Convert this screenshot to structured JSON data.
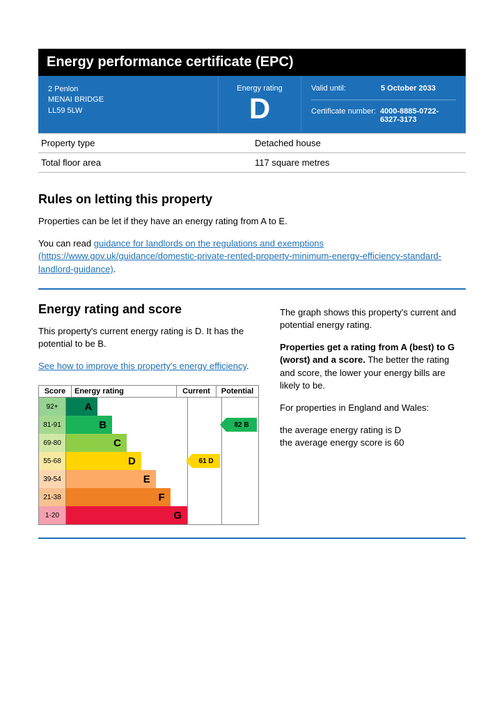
{
  "title": "Energy performance certificate (EPC)",
  "address": {
    "line1": "2 Penlon",
    "line2": "MENAI BRIDGE",
    "line3": "LL59 5LW"
  },
  "rating_label": "Energy rating",
  "rating_letter": "D",
  "valid": {
    "label": "Valid until:",
    "value": "5 October 2033",
    "cert_label": "Certificate number:",
    "cert_value": "4000-8885-0722-6327-3173"
  },
  "props": [
    {
      "label": "Property type",
      "value": "Detached house"
    },
    {
      "label": "Total floor area",
      "value": "117 square metres"
    }
  ],
  "rules": {
    "heading": "Rules on letting this property",
    "p1": "Properties can be let if they have an energy rating from A to E.",
    "p2a": "You can read ",
    "link_text": "guidance for landlords on the regulations and exemptions (https://www.gov.uk/guidance/domestic-private-rented-property-minimum-energy-efficiency-standard-landlord-guidance)",
    "p2b": "."
  },
  "score_section": {
    "heading": "Energy rating and score",
    "left_p1": "This property's current energy rating is D. It has the potential to be B.",
    "left_link": "See how to improve this property's energy efficiency",
    "right_p1": "The graph shows this property's current and potential energy rating.",
    "right_p2a": "Properties get a rating from A (best) to G (worst) and a score.",
    "right_p2b": " The better the rating and score, the lower your energy bills are likely to be.",
    "right_p3": "For properties in England and Wales:",
    "right_p4a": "the average energy rating is D",
    "right_p4b": "the average energy score is 60"
  },
  "chart": {
    "headers": {
      "score": "Score",
      "rating": "Energy rating",
      "current": "Current",
      "potential": "Potential"
    },
    "bands": [
      {
        "range": "92+",
        "letter": "A",
        "width_pct": 26,
        "bar_color": "#008054",
        "score_bg": "#97d393"
      },
      {
        "range": "81-91",
        "letter": "B",
        "width_pct": 38,
        "bar_color": "#19b459",
        "score_bg": "#a4d88f"
      },
      {
        "range": "69-80",
        "letter": "C",
        "width_pct": 50,
        "bar_color": "#8dce46",
        "score_bg": "#d0e8a5"
      },
      {
        "range": "55-68",
        "letter": "D",
        "width_pct": 62,
        "bar_color": "#ffd500",
        "score_bg": "#f7e9a0"
      },
      {
        "range": "39-54",
        "letter": "E",
        "width_pct": 74,
        "bar_color": "#fcaa65",
        "score_bg": "#fbd6b0"
      },
      {
        "range": "21-38",
        "letter": "F",
        "width_pct": 86,
        "bar_color": "#ef8023",
        "score_bg": "#f7c290"
      },
      {
        "range": "1-20",
        "letter": "G",
        "width_pct": 100,
        "bar_color": "#e9153b",
        "score_bg": "#f5a0af"
      }
    ],
    "current": {
      "band": "D",
      "score": 61,
      "color": "#ffd500"
    },
    "potential": {
      "band": "B",
      "score": 82,
      "color": "#19b459"
    }
  }
}
